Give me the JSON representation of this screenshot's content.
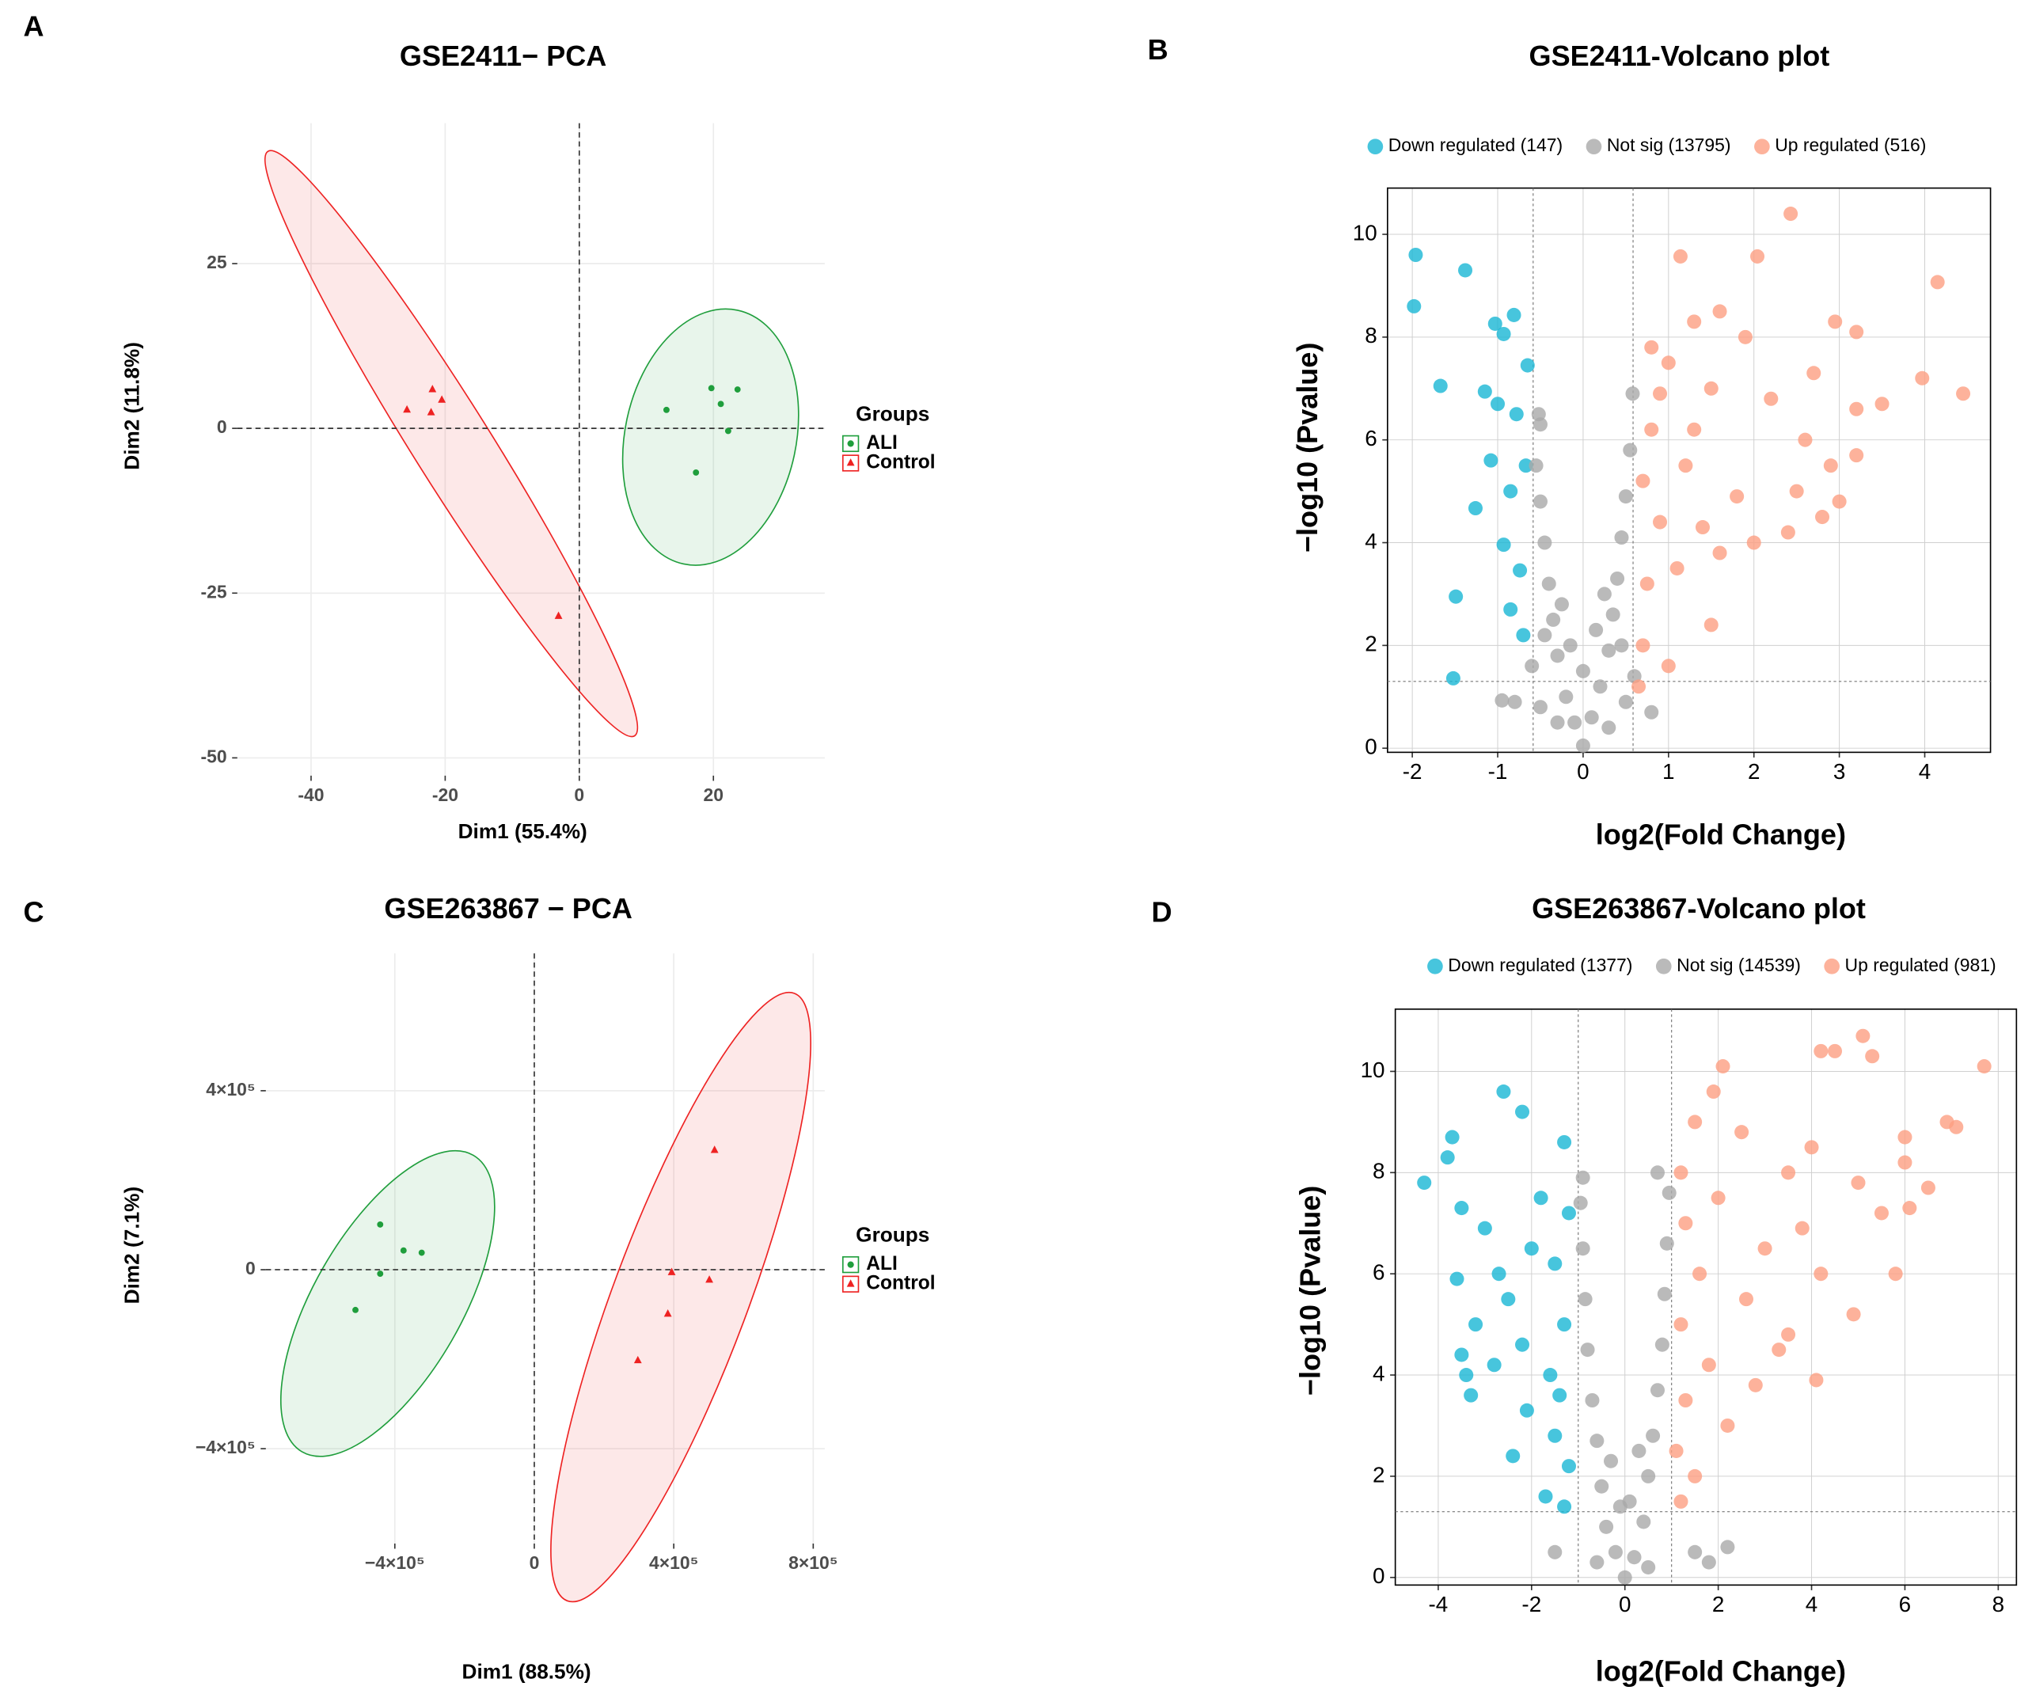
{
  "chart_data": [
    {
      "type": "scatter",
      "label": "A",
      "title": "GSE2411− PCA",
      "xlabel": "Dim1 (55.4%)",
      "ylabel": "Dim2 (11.8%)",
      "xlim": [
        -51,
        36.6
      ],
      "ylim": [
        -52.7,
        46.3
      ],
      "xticks": [
        -40,
        -20,
        0,
        20
      ],
      "yticks": [
        -50,
        -25,
        0,
        25
      ],
      "grid": true,
      "zero_lines": true,
      "frame": false,
      "legend": "right",
      "legend_title": "Groups",
      "series": [
        {
          "name": "ALI",
          "color": "#1f9e3c",
          "marker": "circle",
          "x": [
            13.0,
            19.7,
            21.1,
            23.6,
            22.2,
            17.4
          ],
          "values": [
            2.8,
            6.1,
            3.7,
            5.9,
            -0.4,
            -6.7
          ]
        },
        {
          "name": "Control",
          "color": "#ee2222",
          "marker": "triangle",
          "x": [
            -21.9,
            -20.5,
            -25.7,
            -22.1,
            -3.1
          ],
          "values": [
            5.9,
            4.3,
            2.8,
            2.4,
            -28.5
          ]
        }
      ]
    },
    {
      "type": "scatter",
      "label": "B",
      "title": "GSE2411-Volcano plot",
      "xlabel": "log2(Fold Change)",
      "ylabel": "−log10 (Pvalue)",
      "xlim": [
        -2.29,
        4.77
      ],
      "ylim": [
        -0.08,
        10.9
      ],
      "xticks": [
        -2,
        -1,
        0,
        1,
        2,
        3,
        4
      ],
      "yticks": [
        0,
        2,
        4,
        6,
        8,
        10
      ],
      "grid": true,
      "zero_lines": false,
      "frame": true,
      "legend": "top",
      "x_cutoffs": [
        -0.585,
        0.585
      ],
      "y_cutoff": 1.3,
      "series": [
        {
          "name": "Down regulated (147)",
          "color": "#19b7d4",
          "marker": "circle",
          "x": [
            -1.96,
            -1.98,
            -1.38,
            -1.67,
            -1.49,
            -1.52,
            -1.26,
            -0.81,
            -1.03,
            -0.93,
            -1.15,
            -1.0,
            -0.78,
            -1.08,
            -0.85,
            -0.93,
            -0.74,
            -0.85,
            -0.7,
            -0.65,
            -0.67
          ],
          "values": [
            9.6,
            8.6,
            9.3,
            7.05,
            2.95,
            1.36,
            4.67,
            8.43,
            8.26,
            8.06,
            6.94,
            6.7,
            6.5,
            5.6,
            5.0,
            3.96,
            3.46,
            2.7,
            2.2,
            7.45,
            5.5
          ]
        },
        {
          "name": "Not sig (13795)",
          "color": "#a9a9a9",
          "marker": "circle",
          "x": [
            0,
            -0.1,
            0.1,
            -0.2,
            0.2,
            -0.3,
            0.3,
            -0.35,
            0.35,
            -0.4,
            0.4,
            -0.45,
            0.45,
            -0.5,
            0.5,
            -0.55,
            0.55,
            -0.5,
            0.58,
            -0.52,
            0.3,
            -0.3,
            0.5,
            -0.5,
            -0.95,
            0.8,
            -0.8,
            0.6,
            -0.6,
            0,
            0.15,
            -0.15,
            0.25,
            -0.25,
            0.45,
            -0.45
          ],
          "values": [
            0.05,
            0.5,
            0.6,
            1,
            1.2,
            1.8,
            1.9,
            2.5,
            2.6,
            3.2,
            3.3,
            4,
            4.1,
            4.8,
            4.9,
            5.5,
            5.8,
            6.3,
            6.9,
            6.5,
            0.4,
            0.5,
            0.9,
            0.8,
            0.93,
            0.7,
            0.9,
            1.4,
            1.6,
            1.5,
            2.3,
            2.0,
            3.0,
            2.8,
            2,
            2.2
          ]
        },
        {
          "name": "Up regulated (516)",
          "color": "#fc9f82",
          "marker": "circle",
          "x": [
            1.14,
            2.04,
            2.43,
            4.15,
            4.45,
            3.97,
            3.2,
            2.95,
            2.7,
            1.6,
            1.3,
            1.9,
            1.0,
            0.8,
            0.9,
            1.5,
            2.2,
            3.5,
            3.2,
            2.9,
            3.2,
            2.5,
            1.8,
            1.2,
            0.8,
            0.7,
            0.9,
            1.4,
            2.0,
            2.8,
            3.0,
            1.1,
            0.75,
            1.5,
            0.7,
            1.0,
            0.65,
            1.6,
            2.4,
            1.3,
            2.6
          ],
          "values": [
            9.57,
            9.57,
            10.4,
            9.07,
            6.9,
            7.2,
            8.1,
            8.3,
            7.3,
            8.5,
            8.3,
            8.0,
            7.5,
            7.8,
            6.9,
            7.0,
            6.8,
            6.7,
            6.6,
            5.5,
            5.7,
            5.0,
            4.9,
            5.5,
            6.2,
            5.2,
            4.4,
            4.3,
            4.0,
            4.5,
            4.8,
            3.5,
            3.2,
            2.4,
            2.0,
            1.6,
            1.2,
            3.8,
            4.2,
            6.2,
            6.0
          ]
        }
      ]
    },
    {
      "type": "scatter",
      "label": "C",
      "title": "GSE263867 − PCA",
      "xlabel": "Dim1 (88.5%)",
      "ylabel": "Dim2 (7.1%)",
      "xlim": [
        -770000,
        833000
      ],
      "ylim": [
        -612000,
        707000
      ],
      "xticks": [
        {
          "value": -400000,
          "label": "−4×10⁵"
        },
        0,
        {
          "value": 400000,
          "label": "4×10⁵"
        },
        {
          "value": 800000,
          "label": "8×10⁵"
        }
      ],
      "yticks": [
        {
          "value": -400000,
          "label": "−4×10⁵"
        },
        0,
        {
          "value": 400000,
          "label": "4×10⁵"
        }
      ],
      "grid": true,
      "zero_lines": true,
      "frame": false,
      "legend": "right",
      "legend_title": "Groups",
      "series": [
        {
          "name": "ALI",
          "color": "#1f9e3c",
          "marker": "circle",
          "x": [
            -442000,
            -375000,
            -323000,
            -442000,
            -513000
          ],
          "values": [
            101000,
            43000,
            38000,
            -9000,
            -90000
          ]
        },
        {
          "name": "Control",
          "color": "#ee2222",
          "marker": "triangle",
          "x": [
            517000,
            394000,
            502000,
            383000,
            297000
          ],
          "values": [
            267000,
            -6000,
            -23000,
            -99000,
            -203000
          ]
        }
      ]
    },
    {
      "type": "scatter",
      "label": "D",
      "title": "GSE263867-Volcano plot",
      "xlabel": "log2(Fold Change)",
      "ylabel": "−log10 (Pvalue)",
      "xlim": [
        -4.92,
        8.39
      ],
      "ylim": [
        -0.15,
        11.23
      ],
      "xticks": [
        -4,
        -2,
        0,
        2,
        4,
        6,
        8
      ],
      "yticks": [
        0,
        2,
        4,
        6,
        8,
        10
      ],
      "grid": true,
      "zero_lines": false,
      "frame": true,
      "legend": "top",
      "x_cutoffs": [
        -1,
        1
      ],
      "y_cutoff": 1.3,
      "series": [
        {
          "name": "Down regulated (1377)",
          "color": "#19b7d4",
          "marker": "circle",
          "x": [
            -4.3,
            -3.7,
            -3.8,
            -2.6,
            -2.2,
            -1.3,
            -3.5,
            -3.0,
            -3.6,
            -3.2,
            -3.5,
            -3.4,
            -3.3,
            -2.8,
            -2.5,
            -2.0,
            -1.8,
            -1.5,
            -1.3,
            -1.6,
            -2.1,
            -1.5,
            -1.2,
            -1.7,
            -1.3,
            -2.4,
            -2.7,
            -1.2,
            -1.4,
            -2.2
          ],
          "values": [
            7.8,
            8.7,
            8.3,
            9.6,
            9.2,
            8.6,
            7.3,
            6.9,
            5.9,
            5.0,
            4.4,
            4.0,
            3.6,
            4.2,
            5.5,
            6.5,
            7.5,
            6.2,
            5.0,
            4.0,
            3.3,
            2.8,
            2.2,
            1.6,
            1.4,
            2.4,
            6.0,
            7.2,
            3.6,
            4.6
          ]
        },
        {
          "name": "Not sig (14539)",
          "color": "#a9a9a9",
          "marker": "circle",
          "x": [
            0,
            -0.2,
            0.2,
            -0.4,
            0.4,
            -0.5,
            0.5,
            -0.6,
            0.6,
            -0.7,
            0.7,
            -0.8,
            0.8,
            -0.85,
            0.85,
            -0.9,
            0.9,
            -0.95,
            0.95,
            -0.9,
            0.7,
            0.1,
            -0.1,
            0.3,
            -0.3,
            1.5,
            2.2,
            1.8,
            -1.5,
            0.5,
            -0.6
          ],
          "values": [
            0,
            0.5,
            0.4,
            1,
            1.1,
            1.8,
            2,
            2.7,
            2.8,
            3.5,
            3.7,
            4.5,
            4.6,
            5.5,
            5.6,
            6.5,
            6.6,
            7.4,
            7.6,
            7.9,
            8.0,
            1.5,
            1.4,
            2.5,
            2.3,
            0.5,
            0.6,
            0.3,
            0.5,
            0.2,
            0.3
          ]
        },
        {
          "name": "Up regulated (981)",
          "color": "#fc9f82",
          "marker": "circle",
          "x": [
            7.7,
            5.1,
            4.5,
            5.3,
            4.2,
            2.1,
            1.9,
            6.9,
            7.1,
            6.0,
            6.0,
            6.5,
            6.1,
            5.0,
            5.5,
            4.0,
            3.5,
            2.5,
            1.5,
            1.2,
            1.3,
            2.0,
            3.0,
            4.2,
            4.9,
            4.1,
            3.5,
            2.6,
            1.6,
            1.2,
            1.8,
            1.3,
            2.2,
            1.1,
            1.5,
            1.2,
            3.3,
            2.8,
            5.8,
            3.8
          ],
          "values": [
            10.1,
            10.7,
            10.4,
            10.3,
            10.4,
            10.1,
            9.6,
            9.0,
            8.9,
            8.7,
            8.2,
            7.7,
            7.3,
            7.8,
            7.2,
            8.5,
            8.0,
            8.8,
            9.0,
            8.0,
            7.0,
            7.5,
            6.5,
            6.0,
            5.2,
            3.9,
            4.8,
            5.5,
            6.0,
            5.0,
            4.2,
            3.5,
            3.0,
            2.5,
            2.0,
            1.5,
            4.5,
            3.8,
            6.0,
            6.9
          ]
        }
      ]
    }
  ]
}
